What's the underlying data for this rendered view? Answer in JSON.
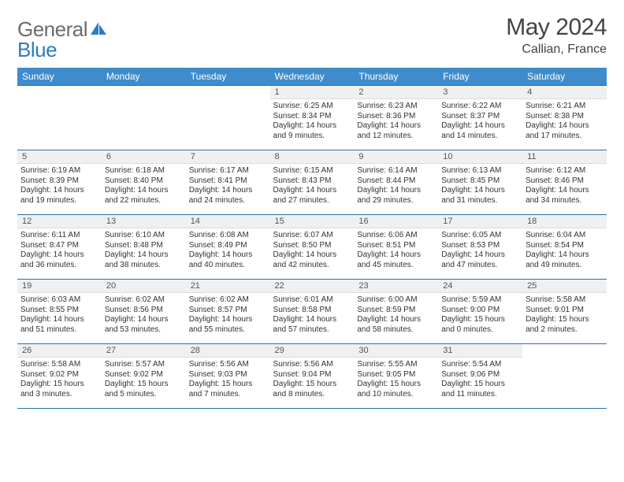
{
  "logo": {
    "text1": "General",
    "text2": "Blue"
  },
  "title": "May 2024",
  "location": "Callian, France",
  "colors": {
    "header_bg": "#3e8ccc",
    "header_text": "#ffffff",
    "row_border": "#2f6fa3",
    "daynum_bg": "#eef0f2",
    "body_text": "#333333",
    "logo_gray": "#6b6b6b",
    "logo_blue": "#2f7bbf"
  },
  "weekdays": [
    "Sunday",
    "Monday",
    "Tuesday",
    "Wednesday",
    "Thursday",
    "Friday",
    "Saturday"
  ],
  "weeks": [
    [
      {
        "n": "",
        "sr": "",
        "ss": "",
        "dl": ""
      },
      {
        "n": "",
        "sr": "",
        "ss": "",
        "dl": ""
      },
      {
        "n": "",
        "sr": "",
        "ss": "",
        "dl": ""
      },
      {
        "n": "1",
        "sr": "Sunrise: 6:25 AM",
        "ss": "Sunset: 8:34 PM",
        "dl": "Daylight: 14 hours and 9 minutes."
      },
      {
        "n": "2",
        "sr": "Sunrise: 6:23 AM",
        "ss": "Sunset: 8:36 PM",
        "dl": "Daylight: 14 hours and 12 minutes."
      },
      {
        "n": "3",
        "sr": "Sunrise: 6:22 AM",
        "ss": "Sunset: 8:37 PM",
        "dl": "Daylight: 14 hours and 14 minutes."
      },
      {
        "n": "4",
        "sr": "Sunrise: 6:21 AM",
        "ss": "Sunset: 8:38 PM",
        "dl": "Daylight: 14 hours and 17 minutes."
      }
    ],
    [
      {
        "n": "5",
        "sr": "Sunrise: 6:19 AM",
        "ss": "Sunset: 8:39 PM",
        "dl": "Daylight: 14 hours and 19 minutes."
      },
      {
        "n": "6",
        "sr": "Sunrise: 6:18 AM",
        "ss": "Sunset: 8:40 PM",
        "dl": "Daylight: 14 hours and 22 minutes."
      },
      {
        "n": "7",
        "sr": "Sunrise: 6:17 AM",
        "ss": "Sunset: 8:41 PM",
        "dl": "Daylight: 14 hours and 24 minutes."
      },
      {
        "n": "8",
        "sr": "Sunrise: 6:15 AM",
        "ss": "Sunset: 8:43 PM",
        "dl": "Daylight: 14 hours and 27 minutes."
      },
      {
        "n": "9",
        "sr": "Sunrise: 6:14 AM",
        "ss": "Sunset: 8:44 PM",
        "dl": "Daylight: 14 hours and 29 minutes."
      },
      {
        "n": "10",
        "sr": "Sunrise: 6:13 AM",
        "ss": "Sunset: 8:45 PM",
        "dl": "Daylight: 14 hours and 31 minutes."
      },
      {
        "n": "11",
        "sr": "Sunrise: 6:12 AM",
        "ss": "Sunset: 8:46 PM",
        "dl": "Daylight: 14 hours and 34 minutes."
      }
    ],
    [
      {
        "n": "12",
        "sr": "Sunrise: 6:11 AM",
        "ss": "Sunset: 8:47 PM",
        "dl": "Daylight: 14 hours and 36 minutes."
      },
      {
        "n": "13",
        "sr": "Sunrise: 6:10 AM",
        "ss": "Sunset: 8:48 PM",
        "dl": "Daylight: 14 hours and 38 minutes."
      },
      {
        "n": "14",
        "sr": "Sunrise: 6:08 AM",
        "ss": "Sunset: 8:49 PM",
        "dl": "Daylight: 14 hours and 40 minutes."
      },
      {
        "n": "15",
        "sr": "Sunrise: 6:07 AM",
        "ss": "Sunset: 8:50 PM",
        "dl": "Daylight: 14 hours and 42 minutes."
      },
      {
        "n": "16",
        "sr": "Sunrise: 6:06 AM",
        "ss": "Sunset: 8:51 PM",
        "dl": "Daylight: 14 hours and 45 minutes."
      },
      {
        "n": "17",
        "sr": "Sunrise: 6:05 AM",
        "ss": "Sunset: 8:53 PM",
        "dl": "Daylight: 14 hours and 47 minutes."
      },
      {
        "n": "18",
        "sr": "Sunrise: 6:04 AM",
        "ss": "Sunset: 8:54 PM",
        "dl": "Daylight: 14 hours and 49 minutes."
      }
    ],
    [
      {
        "n": "19",
        "sr": "Sunrise: 6:03 AM",
        "ss": "Sunset: 8:55 PM",
        "dl": "Daylight: 14 hours and 51 minutes."
      },
      {
        "n": "20",
        "sr": "Sunrise: 6:02 AM",
        "ss": "Sunset: 8:56 PM",
        "dl": "Daylight: 14 hours and 53 minutes."
      },
      {
        "n": "21",
        "sr": "Sunrise: 6:02 AM",
        "ss": "Sunset: 8:57 PM",
        "dl": "Daylight: 14 hours and 55 minutes."
      },
      {
        "n": "22",
        "sr": "Sunrise: 6:01 AM",
        "ss": "Sunset: 8:58 PM",
        "dl": "Daylight: 14 hours and 57 minutes."
      },
      {
        "n": "23",
        "sr": "Sunrise: 6:00 AM",
        "ss": "Sunset: 8:59 PM",
        "dl": "Daylight: 14 hours and 58 minutes."
      },
      {
        "n": "24",
        "sr": "Sunrise: 5:59 AM",
        "ss": "Sunset: 9:00 PM",
        "dl": "Daylight: 15 hours and 0 minutes."
      },
      {
        "n": "25",
        "sr": "Sunrise: 5:58 AM",
        "ss": "Sunset: 9:01 PM",
        "dl": "Daylight: 15 hours and 2 minutes."
      }
    ],
    [
      {
        "n": "26",
        "sr": "Sunrise: 5:58 AM",
        "ss": "Sunset: 9:02 PM",
        "dl": "Daylight: 15 hours and 3 minutes."
      },
      {
        "n": "27",
        "sr": "Sunrise: 5:57 AM",
        "ss": "Sunset: 9:02 PM",
        "dl": "Daylight: 15 hours and 5 minutes."
      },
      {
        "n": "28",
        "sr": "Sunrise: 5:56 AM",
        "ss": "Sunset: 9:03 PM",
        "dl": "Daylight: 15 hours and 7 minutes."
      },
      {
        "n": "29",
        "sr": "Sunrise: 5:56 AM",
        "ss": "Sunset: 9:04 PM",
        "dl": "Daylight: 15 hours and 8 minutes."
      },
      {
        "n": "30",
        "sr": "Sunrise: 5:55 AM",
        "ss": "Sunset: 9:05 PM",
        "dl": "Daylight: 15 hours and 10 minutes."
      },
      {
        "n": "31",
        "sr": "Sunrise: 5:54 AM",
        "ss": "Sunset: 9:06 PM",
        "dl": "Daylight: 15 hours and 11 minutes."
      },
      {
        "n": "",
        "sr": "",
        "ss": "",
        "dl": ""
      }
    ]
  ]
}
